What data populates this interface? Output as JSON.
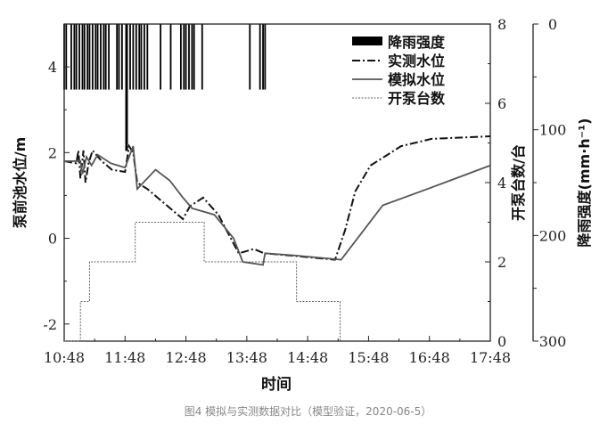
{
  "chart_data": {
    "type": "line",
    "caption": "图4 模拟与实测数据对比（模型验证，2020-06-5）",
    "xlabel": "时间",
    "ylabel_left": "泵前池水位/m",
    "ylabel_right": "开泵台数/台",
    "ylabel_rain": "降雨强度(mm·h⁻¹)",
    "x_ticks": [
      "10:48",
      "11:48",
      "12:48",
      "13:48",
      "14:48",
      "15:48",
      "16:48",
      "17:48"
    ],
    "xlim": [
      "10:48",
      "17:48"
    ],
    "ylim_left": [
      -2.4,
      5
    ],
    "y_ticks_left": [
      "-2",
      "0",
      "2",
      "4"
    ],
    "ylim_pump": [
      0,
      8
    ],
    "y_ticks_pump": [
      "0",
      "2",
      "4",
      "6",
      "8"
    ],
    "ylim_rain": [
      300,
      0
    ],
    "y_ticks_rain": [
      "0",
      "100",
      "200",
      "300"
    ],
    "grid": false,
    "legend_position": "top-right",
    "legend": [
      "降雨强度",
      "实测水位",
      "模拟水位",
      "开泵台数"
    ],
    "rainfall": {
      "name": "降雨强度",
      "unit": "mm·h⁻¹",
      "points": [
        [
          "10:48",
          62
        ],
        [
          "10:50",
          62
        ],
        [
          "10:55",
          62
        ],
        [
          "10:58",
          62
        ],
        [
          "11:00",
          62
        ],
        [
          "11:03",
          62
        ],
        [
          "11:06",
          62
        ],
        [
          "11:08",
          62
        ],
        [
          "11:11",
          62
        ],
        [
          "11:13",
          62
        ],
        [
          "11:16",
          62
        ],
        [
          "11:19",
          62
        ],
        [
          "11:21",
          62
        ],
        [
          "11:24",
          62
        ],
        [
          "11:27",
          62
        ],
        [
          "11:29",
          62
        ],
        [
          "11:32",
          62
        ],
        [
          "11:40",
          62
        ],
        [
          "11:42",
          62
        ],
        [
          "11:45",
          62
        ],
        [
          "11:49",
          120
        ],
        [
          "11:50",
          120
        ],
        [
          "11:53",
          62
        ],
        [
          "11:56",
          62
        ],
        [
          "11:59",
          62
        ],
        [
          "12:02",
          62
        ],
        [
          "12:04",
          62
        ],
        [
          "12:07",
          62
        ],
        [
          "12:10",
          62
        ],
        [
          "12:23",
          62
        ],
        [
          "12:33",
          62
        ],
        [
          "12:43",
          62
        ],
        [
          "12:46",
          62
        ],
        [
          "12:48",
          62
        ],
        [
          "12:51",
          62
        ],
        [
          "12:54",
          62
        ],
        [
          "12:56",
          62
        ],
        [
          "13:04",
          62
        ],
        [
          "13:51",
          62
        ],
        [
          "14:01",
          62
        ],
        [
          "14:04",
          62
        ],
        [
          "14:06",
          62
        ]
      ]
    },
    "series": [
      {
        "name": "实测水位",
        "style": "dash-dot",
        "points": [
          [
            "10:48",
            1.8
          ],
          [
            "11:00",
            1.75
          ],
          [
            "11:02",
            2.05
          ],
          [
            "11:04",
            1.4
          ],
          [
            "11:07",
            2.05
          ],
          [
            "11:09",
            1.3
          ],
          [
            "11:12",
            1.75
          ],
          [
            "11:16",
            2.05
          ],
          [
            "11:25",
            1.8
          ],
          [
            "11:35",
            1.6
          ],
          [
            "11:48",
            1.55
          ],
          [
            "11:52",
            2.15
          ],
          [
            "11:56",
            2.0
          ],
          [
            "12:00",
            1.3
          ],
          [
            "12:10",
            1.15
          ],
          [
            "12:20",
            0.95
          ],
          [
            "12:35",
            0.65
          ],
          [
            "12:45",
            0.45
          ],
          [
            "12:52",
            0.75
          ],
          [
            "13:05",
            0.95
          ],
          [
            "13:20",
            0.55
          ],
          [
            "13:40",
            -0.35
          ],
          [
            "13:55",
            -0.25
          ],
          [
            "14:05",
            -0.35
          ],
          [
            "14:30",
            -0.4
          ],
          [
            "15:15",
            -0.5
          ],
          [
            "15:25",
            0.2
          ],
          [
            "15:35",
            1.1
          ],
          [
            "15:50",
            1.7
          ],
          [
            "16:20",
            2.15
          ],
          [
            "16:50",
            2.32
          ],
          [
            "17:48",
            2.38
          ]
        ]
      },
      {
        "name": "模拟水位",
        "style": "solid",
        "points": [
          [
            "10:48",
            1.8
          ],
          [
            "11:04",
            1.8
          ],
          [
            "11:06",
            1.5
          ],
          [
            "11:10",
            1.9
          ],
          [
            "11:15",
            1.7
          ],
          [
            "11:21",
            1.95
          ],
          [
            "11:34",
            1.75
          ],
          [
            "11:48",
            1.65
          ],
          [
            "11:56",
            2.15
          ],
          [
            "12:00",
            1.15
          ],
          [
            "12:18",
            1.6
          ],
          [
            "12:32",
            1.35
          ],
          [
            "12:45",
            0.95
          ],
          [
            "12:54",
            0.7
          ],
          [
            "13:16",
            0.55
          ],
          [
            "13:35",
            0.0
          ],
          [
            "13:44",
            -0.55
          ],
          [
            "14:04",
            -0.62
          ],
          [
            "14:06",
            -0.35
          ],
          [
            "14:35",
            -0.4
          ],
          [
            "15:21",
            -0.5
          ],
          [
            "16:02",
            0.77
          ],
          [
            "16:46",
            1.15
          ],
          [
            "17:48",
            1.7
          ]
        ]
      },
      {
        "name": "开泵台数",
        "style": "dotted-step",
        "axis": "pump",
        "points": [
          [
            "10:48",
            0
          ],
          [
            "11:04",
            1
          ],
          [
            "11:13",
            2
          ],
          [
            "11:58",
            3
          ],
          [
            "13:06",
            2
          ],
          [
            "14:37",
            1
          ],
          [
            "15:20",
            0
          ]
        ]
      }
    ]
  },
  "colors": {
    "axis": "#222222",
    "series": "#111111",
    "simulated": "#555555",
    "caption": "#888888"
  }
}
